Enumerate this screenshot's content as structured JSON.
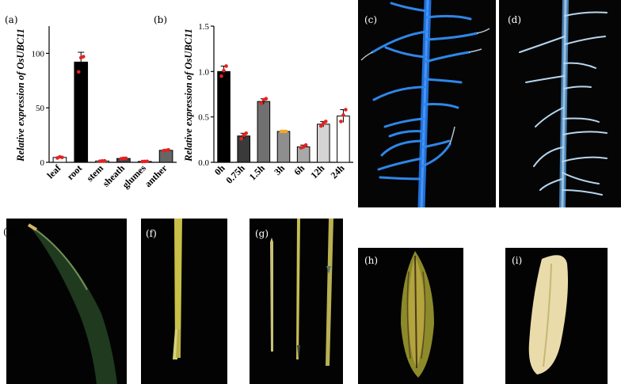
{
  "panels": {
    "a": "(a)",
    "b": "(b)",
    "c": "(c)",
    "d": "(d)",
    "e": "(e)",
    "f": "(f)",
    "g": "(g)",
    "h": "(h)",
    "i": "(i)"
  },
  "colors": {
    "point_color": "#e32222",
    "point_color_b4": "#f5a623",
    "photo_bg": "#000000",
    "root_blue": "#2a7fe0"
  },
  "chart_data": [
    {
      "panel": "a",
      "type": "bar",
      "title": "",
      "ylabel": "Relative expression of OsUBC11",
      "xlabel": "",
      "ylim": [
        0,
        125
      ],
      "yticks": [
        0,
        50,
        100
      ],
      "categories": [
        "leaf",
        "root",
        "stem",
        "sheath",
        "glumes",
        "anther"
      ],
      "values": [
        4.5,
        92,
        1.2,
        3.5,
        0.8,
        11
      ],
      "errors": [
        0.6,
        9,
        0.3,
        0.5,
        0.2,
        0.8
      ],
      "bar_colors": [
        "#ffffff",
        "#000000",
        "#ffffff",
        "#444444",
        "#ffffff",
        "#666666"
      ],
      "points": [
        [
          4,
          5,
          4.5
        ],
        [
          83,
          96,
          97
        ],
        [
          1,
          1.2,
          1.3
        ],
        [
          3.2,
          3.6,
          3.7
        ],
        [
          0.7,
          0.8,
          0.9
        ],
        [
          10.6,
          11,
          11.4
        ]
      ],
      "grid": false
    },
    {
      "panel": "b",
      "type": "bar",
      "title": "",
      "ylabel": "Relative expression of OsUBC11",
      "xlabel": "",
      "ylim": [
        0,
        1.5
      ],
      "yticks": [
        0,
        0.5,
        1.0,
        1.5
      ],
      "ytick_labels": [
        "0.0",
        "0.5",
        "1.0",
        "1.5"
      ],
      "categories": [
        "0h",
        "0.75h",
        "1.5h",
        "3h",
        "6h",
        "12h",
        "24h"
      ],
      "values": [
        1.0,
        0.29,
        0.67,
        0.34,
        0.17,
        0.42,
        0.51
      ],
      "errors": [
        0.06,
        0.03,
        0.03,
        0.005,
        0.02,
        0.03,
        0.07
      ],
      "bar_colors": [
        "#000000",
        "#3a3a3a",
        "#707070",
        "#8e8e8e",
        "#a8a8a8",
        "#d4d4d4",
        "#ffffff"
      ],
      "points": [
        [
          0.95,
          1.01,
          1.06
        ],
        [
          0.26,
          0.3,
          0.32
        ],
        [
          0.65,
          0.69,
          0.7
        ],
        [
          0.34,
          0.34,
          0.34
        ],
        [
          0.16,
          0.17,
          0.19
        ],
        [
          0.4,
          0.43,
          0.45
        ],
        [
          0.45,
          0.52,
          0.58
        ]
      ],
      "grid": false
    }
  ]
}
